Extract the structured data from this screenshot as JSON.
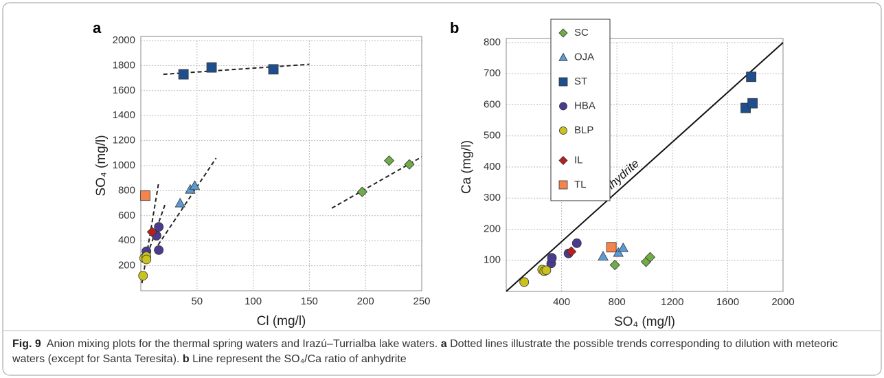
{
  "chart_data": [
    {
      "type": "scatter",
      "panel_label": "a",
      "x_label": "Cl (mg/l)",
      "y_label": "SO₄ (mg/l)",
      "xlim": [
        0,
        250
      ],
      "ylim": [
        0,
        2000
      ],
      "xticks": [
        50,
        100,
        150,
        200,
        250
      ],
      "yticks": [
        200,
        400,
        600,
        800,
        1000,
        1200,
        1400,
        1600,
        1800,
        2000
      ],
      "grid": true,
      "series": [
        {
          "marker": "diamond",
          "color": "#70ad47",
          "x": [
            197,
            221,
            239
          ],
          "values": [
            790,
            1040,
            1010
          ]
        },
        {
          "marker": "triangle",
          "color": "#5b9bd5",
          "x": [
            35,
            44,
            48
          ],
          "values": [
            700,
            810,
            840
          ]
        },
        {
          "marker": "square",
          "color": "#1f4e8c",
          "x": [
            38,
            63,
            118
          ],
          "values": [
            1730,
            1785,
            1770
          ]
        },
        {
          "marker": "circle",
          "color": "#4a3b8f",
          "x": [
            16,
            14,
            16,
            5
          ],
          "values": [
            510,
            440,
            325,
            315
          ]
        },
        {
          "marker": "circle",
          "color": "#c9c31f",
          "x": [
            3,
            5,
            5,
            2
          ],
          "values": [
            260,
            275,
            250,
            120
          ]
        },
        {
          "marker": "diamond",
          "color": "#b8201f",
          "x": [
            10
          ],
          "values": [
            470
          ]
        },
        {
          "marker": "square",
          "color": "#f4844c",
          "x": [
            4
          ],
          "values": [
            760
          ]
        }
      ],
      "trend_lines": [
        {
          "x": [
            20,
            150
          ],
          "y": [
            1730,
            1810
          ]
        },
        {
          "x": [
            12,
            67
          ],
          "y": [
            320,
            1060
          ]
        },
        {
          "x": [
            1,
            16
          ],
          "y": [
            60,
            870
          ]
        },
        {
          "x": [
            4,
            22
          ],
          "y": [
            240,
            700
          ]
        },
        {
          "x": [
            170,
            250
          ],
          "y": [
            660,
            1070
          ]
        }
      ]
    },
    {
      "type": "scatter",
      "panel_label": "b",
      "x_label": "SO₄ (mg/l)",
      "y_label": "Ca (mg/l)",
      "xlim": [
        0,
        2000
      ],
      "ylim": [
        0,
        800
      ],
      "xticks": [
        400,
        800,
        1200,
        1600,
        2000
      ],
      "yticks": [
        100,
        200,
        300,
        400,
        500,
        600,
        700,
        800
      ],
      "grid": true,
      "legend": "upper left",
      "series": [
        {
          "name": "SC",
          "marker": "diamond",
          "color": "#70ad47",
          "x": [
            785,
            1010,
            1040
          ],
          "values": [
            85,
            95,
            110
          ]
        },
        {
          "name": "OJA",
          "marker": "triangle",
          "color": "#5b9bd5",
          "x": [
            700,
            810,
            845
          ],
          "values": [
            113,
            125,
            140
          ]
        },
        {
          "name": "ST",
          "marker": "square",
          "color": "#1f4e8c",
          "x": [
            1730,
            1770,
            1780
          ],
          "values": [
            590,
            690,
            605
          ]
        },
        {
          "name": "HBA",
          "marker": "circle",
          "color": "#4a3b8f",
          "x": [
            325,
            330,
            450,
            510
          ],
          "values": [
            90,
            108,
            122,
            155
          ]
        },
        {
          "name": "BLP",
          "marker": "circle",
          "color": "#c9c31f",
          "x": [
            130,
            260,
            275,
            290
          ],
          "values": [
            30,
            70,
            65,
            68
          ]
        },
        {
          "name": "IL",
          "marker": "diamond",
          "color": "#b8201f",
          "x": [
            470
          ],
          "values": [
            128
          ]
        },
        {
          "name": "TL",
          "marker": "square",
          "color": "#f4844c",
          "x": [
            760
          ],
          "values": [
            142
          ]
        }
      ],
      "reference_line": {
        "label": "anhydrite",
        "x": [
          0,
          2000
        ],
        "y": [
          0,
          800
        ]
      }
    }
  ],
  "caption": {
    "fig_label": "Fig. 9",
    "text1": "Anion mixing plots for the thermal spring waters and Irazú–Turrialba lake waters.",
    "a_label": "a",
    "text2": "Dotted lines illustrate the possible trends corresponding to dilution with meteoric waters (except for Santa Teresita).",
    "b_label": "b",
    "text3": "Line represent the SO₄/Ca ratio of anhydrite"
  }
}
